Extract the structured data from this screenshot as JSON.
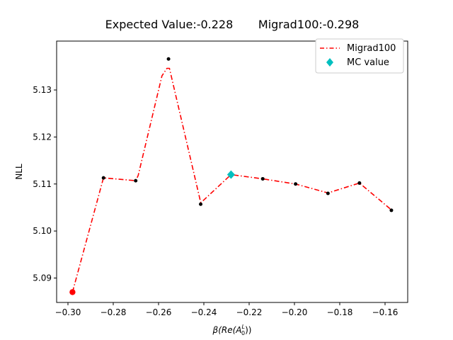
{
  "chart_data": {
    "type": "line",
    "title": "Expected Value:-0.228       Migrad100:-0.298",
    "xlabel": "β(Re(A",
    "xlabel_sub": "0",
    "xlabel_sup": "L",
    "xlabel_end": "))",
    "ylabel": "NLL",
    "xlim": [
      -0.305,
      -0.15
    ],
    "ylim": [
      5.0848,
      5.1404
    ],
    "xticks": [
      -0.3,
      -0.28,
      -0.26,
      -0.24,
      -0.22,
      -0.2,
      -0.18,
      -0.16
    ],
    "xtick_labels": [
      "−0.30",
      "−0.28",
      "−0.26",
      "−0.24",
      "−0.22",
      "−0.20",
      "−0.18",
      "−0.16"
    ],
    "yticks": [
      5.09,
      5.1,
      5.11,
      5.12,
      5.13
    ],
    "ytick_labels": [
      "5.09",
      "5.10",
      "5.11",
      "5.12",
      "5.13"
    ],
    "legend_position": "top-right",
    "series": [
      {
        "name": "Migrad100",
        "color": "#ff0000",
        "style": "dash-dot",
        "x": [
          -0.298,
          -0.2843,
          -0.2701,
          -0.269,
          -0.2585,
          -0.2563,
          -0.2552,
          -0.2414,
          -0.2409,
          -0.228,
          -0.214,
          -0.1995,
          -0.1852,
          -0.1713,
          -0.1572
        ],
        "y": [
          5.087,
          5.1113,
          5.1107,
          5.1118,
          5.133,
          5.1346,
          5.1346,
          5.1061,
          5.1062,
          5.112,
          5.1111,
          5.11,
          5.1081,
          5.1102,
          5.1045
        ]
      },
      {
        "name": "MC value",
        "color": "#00bfbf",
        "marker": "diamond",
        "x": [
          -0.228
        ],
        "y": [
          5.112
        ]
      }
    ],
    "scan_points": {
      "x": [
        -0.2843,
        -0.2701,
        -0.2556,
        -0.2414,
        -0.214,
        -0.1995,
        -0.1852,
        -0.1713,
        -0.1572
      ],
      "y": [
        5.1113,
        5.1107,
        5.1366,
        5.1057,
        5.1111,
        5.11,
        5.108,
        5.1102,
        5.1044
      ]
    },
    "minimum_point": {
      "x": -0.298,
      "y": 5.087,
      "color": "#ff0000"
    }
  }
}
